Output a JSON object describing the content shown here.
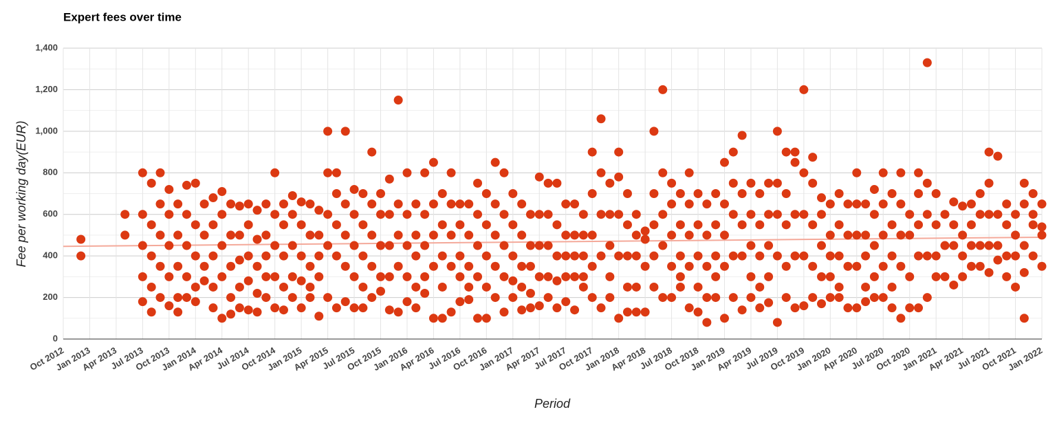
{
  "chart_data": {
    "type": "scatter",
    "title": "Expert fees over time",
    "x_label": "Period",
    "y_label": "Fee per working day(EUR)",
    "color": "#dc3912",
    "grid": true,
    "xlim": [
      "2012-10",
      "2022-01"
    ],
    "xticks": [
      {
        "value": "2012-10",
        "label": "Oct 2012"
      },
      {
        "value": "2013-01",
        "label": "Jan 2013"
      },
      {
        "value": "2013-04",
        "label": "Apr 2013"
      },
      {
        "value": "2013-07",
        "label": "Jul 2013"
      },
      {
        "value": "2013-10",
        "label": "Oct 2013"
      },
      {
        "value": "2014-01",
        "label": "Jan 2014"
      },
      {
        "value": "2014-04",
        "label": "Apr 2014"
      },
      {
        "value": "2014-07",
        "label": "Jul 2014"
      },
      {
        "value": "2014-10",
        "label": "Oct 2014"
      },
      {
        "value": "2015-01",
        "label": "Jan 2015"
      },
      {
        "value": "2015-04",
        "label": "Apr 2015"
      },
      {
        "value": "2015-07",
        "label": "Jul 2015"
      },
      {
        "value": "2015-10",
        "label": "Oct 2015"
      },
      {
        "value": "2016-01",
        "label": "Jan 2016"
      },
      {
        "value": "2016-04",
        "label": "Apr 2016"
      },
      {
        "value": "2016-07",
        "label": "Jul 2016"
      },
      {
        "value": "2016-10",
        "label": "Oct 2016"
      },
      {
        "value": "2017-01",
        "label": "Jan 2017"
      },
      {
        "value": "2017-04",
        "label": "Apr 2017"
      },
      {
        "value": "2017-07",
        "label": "Jul 2017"
      },
      {
        "value": "2017-10",
        "label": "Oct 2017"
      },
      {
        "value": "2018-01",
        "label": "Jan 2018"
      },
      {
        "value": "2018-04",
        "label": "Apr 2018"
      },
      {
        "value": "2018-07",
        "label": "Jul 2018"
      },
      {
        "value": "2018-10",
        "label": "Oct 2018"
      },
      {
        "value": "2019-01",
        "label": "Jan 2019"
      },
      {
        "value": "2019-04",
        "label": "Apr 2019"
      },
      {
        "value": "2019-07",
        "label": "Jul 2019"
      },
      {
        "value": "2019-10",
        "label": "Oct 2019"
      },
      {
        "value": "2020-01",
        "label": "Jan 2020"
      },
      {
        "value": "2020-04",
        "label": "Apr 2020"
      },
      {
        "value": "2020-07",
        "label": "Jul 2020"
      },
      {
        "value": "2020-10",
        "label": "Oct 2020"
      },
      {
        "value": "2021-01",
        "label": "Jan 2021"
      },
      {
        "value": "2021-04",
        "label": "Apr 2021"
      },
      {
        "value": "2021-07",
        "label": "Jul 2021"
      },
      {
        "value": "2021-10",
        "label": "Oct 2021"
      },
      {
        "value": "2022-01",
        "label": "Jan 2022"
      }
    ],
    "ylim": [
      0,
      1400
    ],
    "yticks": [
      0,
      200,
      400,
      600,
      800,
      {
        "value": 1000,
        "label": "1,000"
      },
      {
        "value": 1200,
        "label": "1,200"
      },
      {
        "value": 1400,
        "label": "1,400"
      }
    ],
    "trendline": {
      "x": [
        "2012-10",
        "2022-01"
      ],
      "values": [
        446,
        490
      ],
      "color": "#f4a99a"
    },
    "x": [
      "2012-12",
      "2012-12",
      "2013-05",
      "2013-05",
      "2013-07",
      "2013-07",
      "2013-07",
      "2013-07",
      "2013-07",
      "2013-08",
      "2013-08",
      "2013-08",
      "2013-08",
      "2013-08",
      "2013-09",
      "2013-09",
      "2013-09",
      "2013-09",
      "2013-09",
      "2013-10",
      "2013-10",
      "2013-10",
      "2013-10",
      "2013-10",
      "2013-11",
      "2013-11",
      "2013-11",
      "2013-11",
      "2013-11",
      "2013-12",
      "2013-12",
      "2013-12",
      "2013-12",
      "2013-12",
      "2014-01",
      "2014-01",
      "2014-01",
      "2014-01",
      "2014-01",
      "2014-02",
      "2014-02",
      "2014-02",
      "2014-02",
      "2014-03",
      "2014-03",
      "2014-03",
      "2014-03",
      "2014-03",
      "2014-04",
      "2014-04",
      "2014-04",
      "2014-04",
      "2014-04",
      "2014-05",
      "2014-05",
      "2014-05",
      "2014-05",
      "2014-05",
      "2014-06",
      "2014-06",
      "2014-06",
      "2014-06",
      "2014-06",
      "2014-07",
      "2014-07",
      "2014-07",
      "2014-07",
      "2014-07",
      "2014-08",
      "2014-08",
      "2014-08",
      "2014-08",
      "2014-08",
      "2014-09",
      "2014-09",
      "2014-09",
      "2014-09",
      "2014-09",
      "2014-10",
      "2014-10",
      "2014-10",
      "2014-10",
      "2014-10",
      "2014-11",
      "2014-11",
      "2014-11",
      "2014-11",
      "2014-11",
      "2014-12",
      "2014-12",
      "2014-12",
      "2014-12",
      "2014-12",
      "2015-01",
      "2015-01",
      "2015-01",
      "2015-01",
      "2015-01",
      "2015-02",
      "2015-02",
      "2015-02",
      "2015-02",
      "2015-02",
      "2015-03",
      "2015-03",
      "2015-03",
      "2015-03",
      "2015-03",
      "2015-04",
      "2015-04",
      "2015-04",
      "2015-04",
      "2015-04",
      "2015-05",
      "2015-05",
      "2015-05",
      "2015-05",
      "2015-05",
      "2015-06",
      "2015-06",
      "2015-06",
      "2015-06",
      "2015-06",
      "2015-07",
      "2015-07",
      "2015-07",
      "2015-07",
      "2015-07",
      "2015-08",
      "2015-08",
      "2015-08",
      "2015-08",
      "2015-08",
      "2015-09",
      "2015-09",
      "2015-09",
      "2015-09",
      "2015-09",
      "2015-10",
      "2015-10",
      "2015-10",
      "2015-10",
      "2015-10",
      "2015-11",
      "2015-11",
      "2015-11",
      "2015-11",
      "2015-11",
      "2015-12",
      "2015-12",
      "2015-12",
      "2015-12",
      "2015-12",
      "2016-01",
      "2016-01",
      "2016-01",
      "2016-01",
      "2016-01",
      "2016-02",
      "2016-02",
      "2016-02",
      "2016-02",
      "2016-02",
      "2016-03",
      "2016-03",
      "2016-03",
      "2016-03",
      "2016-03",
      "2016-04",
      "2016-04",
      "2016-04",
      "2016-04",
      "2016-04",
      "2016-05",
      "2016-05",
      "2016-05",
      "2016-05",
      "2016-05",
      "2016-06",
      "2016-06",
      "2016-06",
      "2016-06",
      "2016-06",
      "2016-07",
      "2016-07",
      "2016-07",
      "2016-07",
      "2016-07",
      "2016-08",
      "2016-08",
      "2016-08",
      "2016-08",
      "2016-08",
      "2016-09",
      "2016-09",
      "2016-09",
      "2016-09",
      "2016-09",
      "2016-10",
      "2016-10",
      "2016-10",
      "2016-10",
      "2016-10",
      "2016-11",
      "2016-11",
      "2016-11",
      "2016-11",
      "2016-11",
      "2016-12",
      "2016-12",
      "2016-12",
      "2016-12",
      "2016-12",
      "2017-01",
      "2017-01",
      "2017-01",
      "2017-01",
      "2017-01",
      "2017-02",
      "2017-02",
      "2017-02",
      "2017-02",
      "2017-02",
      "2017-03",
      "2017-03",
      "2017-03",
      "2017-03",
      "2017-03",
      "2017-04",
      "2017-04",
      "2017-04",
      "2017-04",
      "2017-04",
      "2017-05",
      "2017-05",
      "2017-05",
      "2017-05",
      "2017-05",
      "2017-06",
      "2017-06",
      "2017-06",
      "2017-06",
      "2017-06",
      "2017-07",
      "2017-07",
      "2017-07",
      "2017-07",
      "2017-07",
      "2017-08",
      "2017-08",
      "2017-08",
      "2017-08",
      "2017-08",
      "2017-09",
      "2017-09",
      "2017-09",
      "2017-09",
      "2017-09",
      "2017-10",
      "2017-10",
      "2017-10",
      "2017-10",
      "2017-10",
      "2017-11",
      "2017-11",
      "2017-11",
      "2017-11",
      "2017-11",
      "2017-12",
      "2017-12",
      "2017-12",
      "2017-12",
      "2017-12",
      "2018-01",
      "2018-01",
      "2018-01",
      "2018-01",
      "2018-01",
      "2018-02",
      "2018-02",
      "2018-02",
      "2018-02",
      "2018-02",
      "2018-03",
      "2018-03",
      "2018-03",
      "2018-03",
      "2018-03",
      "2018-04",
      "2018-04",
      "2018-04",
      "2018-04",
      "2018-05",
      "2018-05",
      "2018-05",
      "2018-05",
      "2018-05",
      "2018-06",
      "2018-06",
      "2018-06",
      "2018-06",
      "2018-06",
      "2018-07",
      "2018-07",
      "2018-07",
      "2018-07",
      "2018-07",
      "2018-08",
      "2018-08",
      "2018-08",
      "2018-08",
      "2018-08",
      "2018-09",
      "2018-09",
      "2018-09",
      "2018-09",
      "2018-09",
      "2018-10",
      "2018-10",
      "2018-10",
      "2018-10",
      "2018-10",
      "2018-11",
      "2018-11",
      "2018-11",
      "2018-11",
      "2018-11",
      "2018-12",
      "2018-12",
      "2018-12",
      "2018-12",
      "2018-12",
      "2019-01",
      "2019-01",
      "2019-01",
      "2019-01",
      "2019-01",
      "2019-02",
      "2019-02",
      "2019-02",
      "2019-02",
      "2019-02",
      "2019-03",
      "2019-03",
      "2019-03",
      "2019-03",
      "2019-03",
      "2019-04",
      "2019-04",
      "2019-04",
      "2019-04",
      "2019-04",
      "2019-05",
      "2019-05",
      "2019-05",
      "2019-05",
      "2019-05",
      "2019-06",
      "2019-06",
      "2019-06",
      "2019-06",
      "2019-06",
      "2019-07",
      "2019-07",
      "2019-07",
      "2019-07",
      "2019-07",
      "2019-08",
      "2019-08",
      "2019-08",
      "2019-08",
      "2019-08",
      "2019-09",
      "2019-09",
      "2019-09",
      "2019-09",
      "2019-09",
      "2019-10",
      "2019-10",
      "2019-10",
      "2019-10",
      "2019-10",
      "2019-11",
      "2019-11",
      "2019-11",
      "2019-11",
      "2019-11",
      "2019-12",
      "2019-12",
      "2019-12",
      "2019-12",
      "2019-12",
      "2020-01",
      "2020-01",
      "2020-01",
      "2020-01",
      "2020-01",
      "2020-02",
      "2020-02",
      "2020-02",
      "2020-02",
      "2020-02",
      "2020-03",
      "2020-03",
      "2020-03",
      "2020-03",
      "2020-04",
      "2020-04",
      "2020-04",
      "2020-04",
      "2020-04",
      "2020-05",
      "2020-05",
      "2020-05",
      "2020-05",
      "2020-05",
      "2020-06",
      "2020-06",
      "2020-06",
      "2020-06",
      "2020-06",
      "2020-07",
      "2020-07",
      "2020-07",
      "2020-07",
      "2020-07",
      "2020-08",
      "2020-08",
      "2020-08",
      "2020-08",
      "2020-08",
      "2020-09",
      "2020-09",
      "2020-09",
      "2020-09",
      "2020-09",
      "2020-10",
      "2020-10",
      "2020-10",
      "2020-10",
      "2020-11",
      "2020-11",
      "2020-11",
      "2020-11",
      "2020-11",
      "2020-12",
      "2020-12",
      "2020-12",
      "2020-12",
      "2020-12",
      "2021-01",
      "2021-01",
      "2021-01",
      "2021-01",
      "2021-02",
      "2021-02",
      "2021-02",
      "2021-03",
      "2021-03",
      "2021-03",
      "2021-03",
      "2021-04",
      "2021-04",
      "2021-04",
      "2021-04",
      "2021-05",
      "2021-05",
      "2021-05",
      "2021-05",
      "2021-06",
      "2021-06",
      "2021-06",
      "2021-06",
      "2021-07",
      "2021-07",
      "2021-07",
      "2021-07",
      "2021-07",
      "2021-08",
      "2021-08",
      "2021-08",
      "2021-08",
      "2021-09",
      "2021-09",
      "2021-09",
      "2021-09",
      "2021-10",
      "2021-10",
      "2021-10",
      "2021-10",
      "2021-11",
      "2021-11",
      "2021-11",
      "2021-11",
      "2021-11",
      "2021-12",
      "2021-12",
      "2021-12",
      "2021-12",
      "2022-01",
      "2022-01",
      "2022-01",
      "2022-01"
    ],
    "values": [
      480,
      400,
      600,
      500,
      800,
      600,
      450,
      300,
      180,
      750,
      550,
      400,
      250,
      130,
      800,
      650,
      500,
      350,
      200,
      720,
      600,
      450,
      300,
      160,
      650,
      500,
      350,
      200,
      130,
      740,
      600,
      450,
      300,
      200,
      750,
      550,
      400,
      250,
      180,
      650,
      500,
      350,
      280,
      680,
      550,
      400,
      250,
      150,
      710,
      600,
      450,
      300,
      100,
      650,
      500,
      350,
      200,
      120,
      640,
      500,
      380,
      250,
      150,
      650,
      550,
      400,
      280,
      140,
      620,
      480,
      350,
      220,
      130,
      650,
      500,
      400,
      300,
      200,
      800,
      600,
      450,
      300,
      150,
      650,
      550,
      400,
      250,
      140,
      690,
      600,
      450,
      300,
      200,
      660,
      550,
      400,
      280,
      150,
      650,
      500,
      350,
      250,
      200,
      620,
      500,
      400,
      300,
      110,
      1000,
      800,
      600,
      450,
      200,
      800,
      700,
      550,
      400,
      150,
      1000,
      650,
      500,
      350,
      180,
      720,
      600,
      450,
      300,
      150,
      700,
      550,
      400,
      250,
      150,
      900,
      650,
      500,
      350,
      200,
      700,
      600,
      450,
      300,
      230,
      770,
      600,
      450,
      300,
      140,
      1150,
      650,
      500,
      350,
      130,
      800,
      600,
      450,
      300,
      180,
      650,
      500,
      400,
      250,
      150,
      800,
      600,
      450,
      300,
      220,
      850,
      650,
      500,
      350,
      100,
      700,
      550,
      400,
      250,
      100,
      800,
      650,
      500,
      350,
      130,
      650,
      550,
      400,
      300,
      180,
      650,
      500,
      350,
      250,
      190,
      750,
      600,
      450,
      300,
      100,
      700,
      550,
      400,
      250,
      100,
      850,
      650,
      500,
      350,
      200,
      800,
      600,
      450,
      300,
      130,
      700,
      550,
      400,
      280,
      200,
      650,
      500,
      350,
      250,
      140,
      600,
      450,
      350,
      220,
      150,
      780,
      600,
      450,
      300,
      160,
      750,
      600,
      450,
      300,
      200,
      750,
      550,
      400,
      280,
      150,
      650,
      500,
      400,
      300,
      180,
      650,
      500,
      400,
      300,
      140,
      600,
      500,
      400,
      300,
      250,
      900,
      700,
      500,
      350,
      200,
      1060,
      800,
      600,
      400,
      150,
      750,
      600,
      450,
      300,
      200,
      900,
      780,
      600,
      400,
      100,
      700,
      550,
      400,
      250,
      130,
      600,
      500,
      400,
      250,
      130,
      520,
      480,
      350,
      130,
      1000,
      700,
      550,
      400,
      250,
      1200,
      800,
      600,
      450,
      200,
      750,
      650,
      500,
      350,
      200,
      700,
      550,
      400,
      300,
      250,
      800,
      650,
      500,
      350,
      150,
      700,
      550,
      400,
      250,
      130,
      650,
      500,
      350,
      200,
      80,
      700,
      550,
      400,
      300,
      200,
      850,
      650,
      500,
      350,
      100,
      900,
      750,
      600,
      400,
      200,
      980,
      700,
      550,
      400,
      140,
      750,
      600,
      450,
      300,
      200,
      700,
      550,
      400,
      250,
      150,
      750,
      600,
      450,
      300,
      175,
      1000,
      750,
      600,
      400,
      80,
      900,
      700,
      550,
      350,
      200,
      900,
      850,
      600,
      400,
      150,
      1200,
      800,
      600,
      400,
      160,
      875,
      750,
      550,
      350,
      200,
      680,
      600,
      450,
      300,
      170,
      650,
      500,
      400,
      300,
      200,
      700,
      550,
      400,
      250,
      200,
      650,
      500,
      350,
      150,
      800,
      650,
      500,
      350,
      150,
      650,
      500,
      400,
      250,
      180,
      720,
      600,
      450,
      300,
      200,
      800,
      650,
      500,
      350,
      200,
      700,
      550,
      400,
      250,
      150,
      800,
      650,
      500,
      350,
      100,
      600,
      500,
      300,
      150,
      800,
      700,
      550,
      400,
      150,
      1330,
      750,
      600,
      400,
      200,
      700,
      550,
      400,
      300,
      600,
      450,
      300,
      660,
      550,
      450,
      260,
      640,
      500,
      400,
      300,
      650,
      550,
      450,
      350,
      700,
      600,
      450,
      350,
      900,
      750,
      600,
      450,
      320,
      880,
      600,
      450,
      380,
      650,
      550,
      400,
      300,
      600,
      500,
      400,
      250,
      750,
      650,
      450,
      320,
      100,
      700,
      600,
      550,
      400,
      650,
      540,
      500,
      350
    ]
  }
}
